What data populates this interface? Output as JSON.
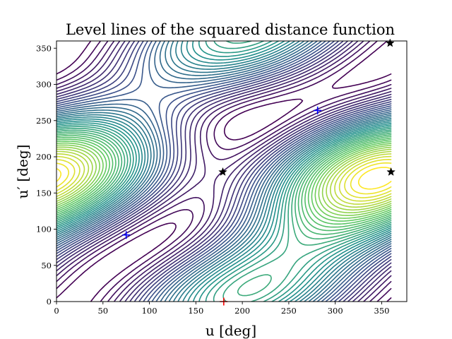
{
  "chart_data": {
    "type": "contour",
    "title": "Level lines of the squared distance function",
    "xlabel": "u [deg]",
    "ylabel": "u′ [deg]",
    "xlim": [
      0,
      377
    ],
    "ylim": [
      0,
      360
    ],
    "xticks": [
      0,
      50,
      100,
      150,
      200,
      250,
      300,
      350
    ],
    "yticks": [
      0,
      50,
      100,
      150,
      200,
      250,
      300,
      350
    ],
    "grid": false,
    "colormap": "viridis",
    "colors": {
      "low": "#440154",
      "mid": "#21918c",
      "high": "#fde725",
      "min_marker": "#0000ff",
      "max_marker": "#ff0000",
      "saddle_marker": "#000000"
    },
    "markers": [
      {
        "kind": "minimum",
        "symbol": "plus",
        "color": "#0000ff",
        "x": 75,
        "y": 92
      },
      {
        "kind": "minimum",
        "symbol": "plus",
        "color": "#0000ff",
        "x": 281,
        "y": 264
      },
      {
        "kind": "maximum",
        "symbol": "plus",
        "color": "#ff0000",
        "x": 180,
        "y": 0
      },
      {
        "kind": "saddle",
        "symbol": "star",
        "color": "#000000",
        "x": 179,
        "y": 179
      },
      {
        "kind": "saddle",
        "symbol": "star",
        "color": "#000000",
        "x": 360,
        "y": 179
      },
      {
        "kind": "saddle",
        "symbol": "star",
        "color": "#000000",
        "x": 359,
        "y": 357
      }
    ]
  }
}
